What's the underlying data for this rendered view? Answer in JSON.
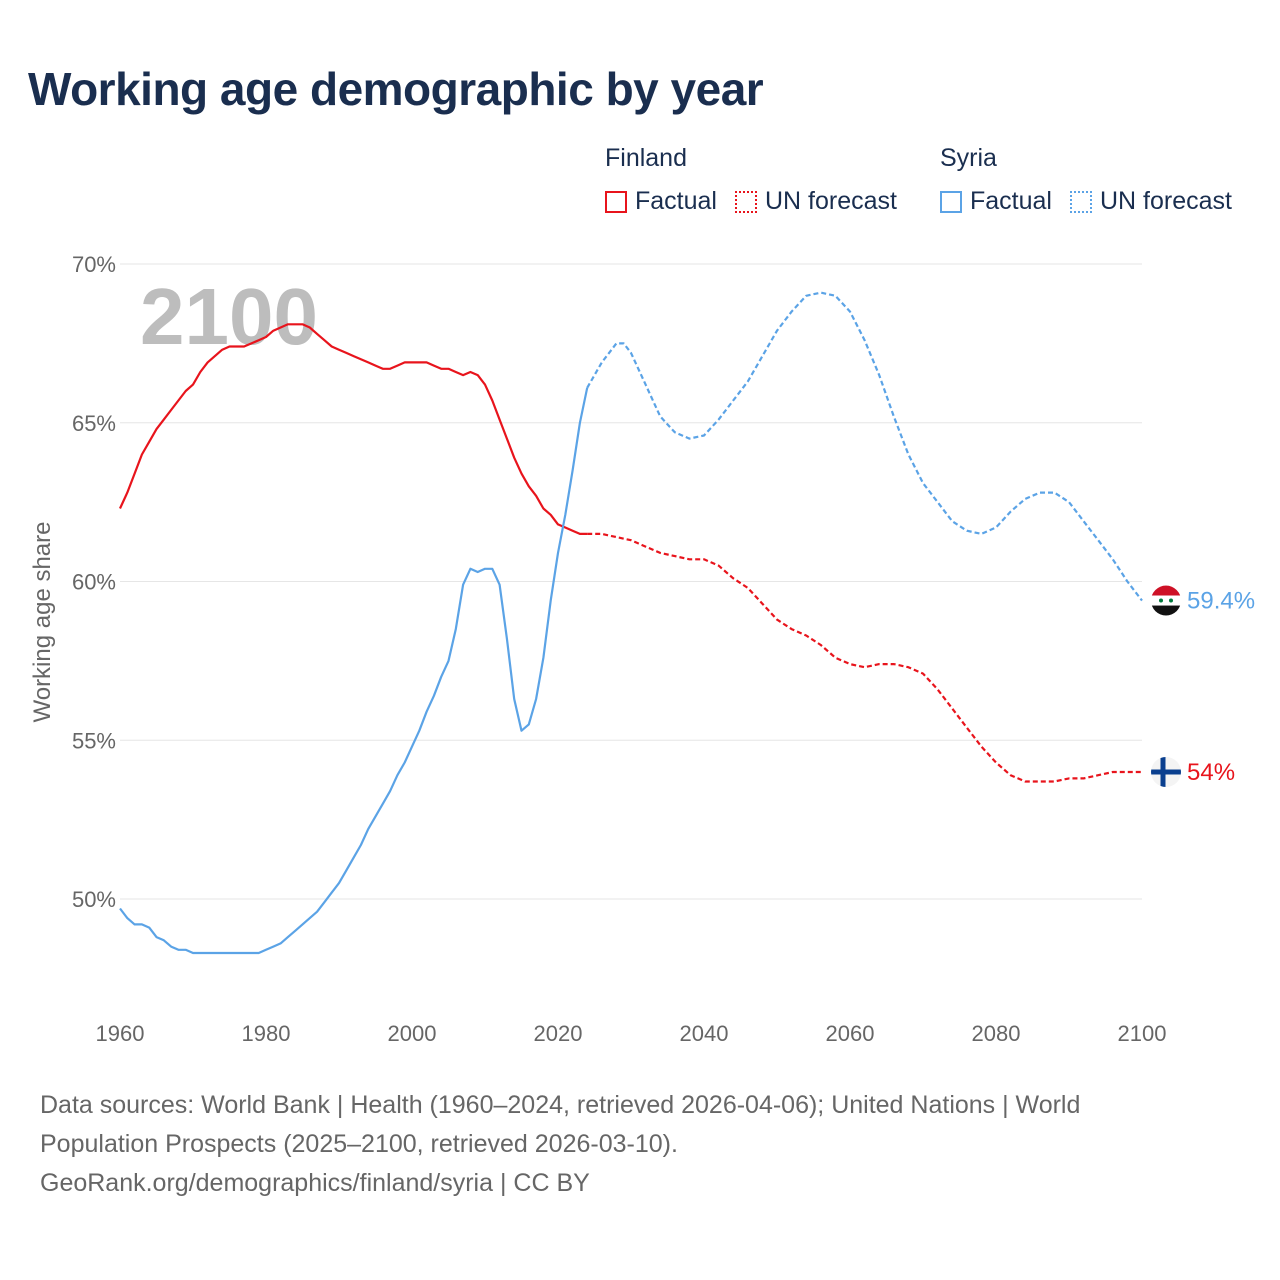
{
  "title": "Working age demographic by year",
  "legend": {
    "finland": {
      "name": "Finland",
      "factual": "Factual",
      "forecast": "UN forecast"
    },
    "syria": {
      "name": "Syria",
      "factual": "Factual",
      "forecast": "UN forecast"
    }
  },
  "colors": {
    "finland": "#e8141c",
    "syria": "#5ba3e6",
    "title": "#1a2e4f",
    "grid": "#e6e6e6",
    "axis_text": "#666666"
  },
  "footer": {
    "line1": "Data sources: World Bank | Health (1960–2024, retrieved 2026-04-06); United Nations | World Population Prospects (2025–2100, retrieved 2026-03-10).",
    "line2": "GeoRank.org/demographics/finland/syria | CC BY"
  },
  "chart_data": {
    "type": "line",
    "title": "Working age demographic by year",
    "xlabel": "",
    "ylabel": "Working age share",
    "current_year": "2100",
    "xlim": [
      1960,
      2100
    ],
    "ylim": [
      47,
      70
    ],
    "y_ticks": [
      50,
      55,
      60,
      65,
      70
    ],
    "y_tick_labels": [
      "50%",
      "55%",
      "60%",
      "65%",
      "70%"
    ],
    "x_ticks": [
      1960,
      1980,
      2000,
      2020,
      2040,
      2060,
      2080,
      2100
    ],
    "x_tick_labels": [
      "1960",
      "1980",
      "2000",
      "2020",
      "2040",
      "2060",
      "2080",
      "2100"
    ],
    "grid": true,
    "series": [
      {
        "name": "Finland",
        "color": "#e8141c",
        "end_label": "54%",
        "factual": [
          [
            1960,
            62.3
          ],
          [
            1961,
            62.8
          ],
          [
            1962,
            63.4
          ],
          [
            1963,
            64.0
          ],
          [
            1964,
            64.4
          ],
          [
            1965,
            64.8
          ],
          [
            1966,
            65.1
          ],
          [
            1967,
            65.4
          ],
          [
            1968,
            65.7
          ],
          [
            1969,
            66.0
          ],
          [
            1970,
            66.2
          ],
          [
            1971,
            66.6
          ],
          [
            1972,
            66.9
          ],
          [
            1973,
            67.1
          ],
          [
            1974,
            67.3
          ],
          [
            1975,
            67.4
          ],
          [
            1976,
            67.4
          ],
          [
            1977,
            67.4
          ],
          [
            1978,
            67.5
          ],
          [
            1979,
            67.6
          ],
          [
            1980,
            67.7
          ],
          [
            1981,
            67.9
          ],
          [
            1982,
            68.0
          ],
          [
            1983,
            68.1
          ],
          [
            1984,
            68.1
          ],
          [
            1985,
            68.1
          ],
          [
            1986,
            68.0
          ],
          [
            1987,
            67.8
          ],
          [
            1988,
            67.6
          ],
          [
            1989,
            67.4
          ],
          [
            1990,
            67.3
          ],
          [
            1991,
            67.2
          ],
          [
            1992,
            67.1
          ],
          [
            1993,
            67.0
          ],
          [
            1994,
            66.9
          ],
          [
            1995,
            66.8
          ],
          [
            1996,
            66.7
          ],
          [
            1997,
            66.7
          ],
          [
            1998,
            66.8
          ],
          [
            1999,
            66.9
          ],
          [
            2000,
            66.9
          ],
          [
            2001,
            66.9
          ],
          [
            2002,
            66.9
          ],
          [
            2003,
            66.8
          ],
          [
            2004,
            66.7
          ],
          [
            2005,
            66.7
          ],
          [
            2006,
            66.6
          ],
          [
            2007,
            66.5
          ],
          [
            2008,
            66.6
          ],
          [
            2009,
            66.5
          ],
          [
            2010,
            66.2
          ],
          [
            2011,
            65.7
          ],
          [
            2012,
            65.1
          ],
          [
            2013,
            64.5
          ],
          [
            2014,
            63.9
          ],
          [
            2015,
            63.4
          ],
          [
            2016,
            63.0
          ],
          [
            2017,
            62.7
          ],
          [
            2018,
            62.3
          ],
          [
            2019,
            62.1
          ],
          [
            2020,
            61.8
          ],
          [
            2021,
            61.7
          ],
          [
            2022,
            61.6
          ],
          [
            2023,
            61.5
          ],
          [
            2024,
            61.5
          ]
        ],
        "forecast": [
          [
            2024,
            61.5
          ],
          [
            2026,
            61.5
          ],
          [
            2028,
            61.4
          ],
          [
            2030,
            61.3
          ],
          [
            2032,
            61.1
          ],
          [
            2034,
            60.9
          ],
          [
            2036,
            60.8
          ],
          [
            2038,
            60.7
          ],
          [
            2040,
            60.7
          ],
          [
            2042,
            60.5
          ],
          [
            2044,
            60.1
          ],
          [
            2046,
            59.8
          ],
          [
            2048,
            59.3
          ],
          [
            2050,
            58.8
          ],
          [
            2052,
            58.5
          ],
          [
            2054,
            58.3
          ],
          [
            2056,
            58.0
          ],
          [
            2058,
            57.6
          ],
          [
            2060,
            57.4
          ],
          [
            2062,
            57.3
          ],
          [
            2064,
            57.4
          ],
          [
            2066,
            57.4
          ],
          [
            2068,
            57.3
          ],
          [
            2070,
            57.1
          ],
          [
            2072,
            56.6
          ],
          [
            2074,
            56.0
          ],
          [
            2076,
            55.4
          ],
          [
            2078,
            54.8
          ],
          [
            2080,
            54.3
          ],
          [
            2082,
            53.9
          ],
          [
            2084,
            53.7
          ],
          [
            2086,
            53.7
          ],
          [
            2088,
            53.7
          ],
          [
            2090,
            53.8
          ],
          [
            2092,
            53.8
          ],
          [
            2094,
            53.9
          ],
          [
            2096,
            54.0
          ],
          [
            2098,
            54.0
          ],
          [
            2100,
            54.0
          ]
        ]
      },
      {
        "name": "Syria",
        "color": "#5ba3e6",
        "end_label": "59.4%",
        "factual": [
          [
            1960,
            49.7
          ],
          [
            1961,
            49.4
          ],
          [
            1962,
            49.2
          ],
          [
            1963,
            49.2
          ],
          [
            1964,
            49.1
          ],
          [
            1965,
            48.8
          ],
          [
            1966,
            48.7
          ],
          [
            1967,
            48.5
          ],
          [
            1968,
            48.4
          ],
          [
            1969,
            48.4
          ],
          [
            1970,
            48.3
          ],
          [
            1971,
            48.3
          ],
          [
            1972,
            48.3
          ],
          [
            1973,
            48.3
          ],
          [
            1974,
            48.3
          ],
          [
            1975,
            48.3
          ],
          [
            1976,
            48.3
          ],
          [
            1977,
            48.3
          ],
          [
            1978,
            48.3
          ],
          [
            1979,
            48.3
          ],
          [
            1980,
            48.4
          ],
          [
            1981,
            48.5
          ],
          [
            1982,
            48.6
          ],
          [
            1983,
            48.8
          ],
          [
            1984,
            49.0
          ],
          [
            1985,
            49.2
          ],
          [
            1986,
            49.4
          ],
          [
            1987,
            49.6
          ],
          [
            1988,
            49.9
          ],
          [
            1989,
            50.2
          ],
          [
            1990,
            50.5
          ],
          [
            1991,
            50.9
          ],
          [
            1992,
            51.3
          ],
          [
            1993,
            51.7
          ],
          [
            1994,
            52.2
          ],
          [
            1995,
            52.6
          ],
          [
            1996,
            53.0
          ],
          [
            1997,
            53.4
          ],
          [
            1998,
            53.9
          ],
          [
            1999,
            54.3
          ],
          [
            2000,
            54.8
          ],
          [
            2001,
            55.3
          ],
          [
            2002,
            55.9
          ],
          [
            2003,
            56.4
          ],
          [
            2004,
            57.0
          ],
          [
            2005,
            57.5
          ],
          [
            2006,
            58.5
          ],
          [
            2007,
            59.9
          ],
          [
            2008,
            60.4
          ],
          [
            2009,
            60.3
          ],
          [
            2010,
            60.4
          ],
          [
            2011,
            60.4
          ],
          [
            2012,
            59.9
          ],
          [
            2013,
            58.2
          ],
          [
            2014,
            56.3
          ],
          [
            2015,
            55.3
          ],
          [
            2016,
            55.5
          ],
          [
            2017,
            56.3
          ],
          [
            2018,
            57.6
          ],
          [
            2019,
            59.4
          ],
          [
            2020,
            60.9
          ],
          [
            2021,
            62.1
          ],
          [
            2022,
            63.5
          ],
          [
            2023,
            65.0
          ],
          [
            2024,
            66.1
          ]
        ],
        "forecast": [
          [
            2024,
            66.1
          ],
          [
            2026,
            66.9
          ],
          [
            2028,
            67.5
          ],
          [
            2029,
            67.5
          ],
          [
            2030,
            67.2
          ],
          [
            2032,
            66.2
          ],
          [
            2034,
            65.2
          ],
          [
            2036,
            64.7
          ],
          [
            2038,
            64.5
          ],
          [
            2040,
            64.6
          ],
          [
            2042,
            65.1
          ],
          [
            2044,
            65.7
          ],
          [
            2046,
            66.3
          ],
          [
            2048,
            67.1
          ],
          [
            2050,
            67.9
          ],
          [
            2052,
            68.5
          ],
          [
            2054,
            69.0
          ],
          [
            2056,
            69.1
          ],
          [
            2058,
            69.0
          ],
          [
            2060,
            68.5
          ],
          [
            2062,
            67.6
          ],
          [
            2064,
            66.5
          ],
          [
            2066,
            65.2
          ],
          [
            2068,
            64.0
          ],
          [
            2070,
            63.1
          ],
          [
            2072,
            62.5
          ],
          [
            2074,
            61.9
          ],
          [
            2076,
            61.6
          ],
          [
            2078,
            61.5
          ],
          [
            2080,
            61.7
          ],
          [
            2082,
            62.2
          ],
          [
            2084,
            62.6
          ],
          [
            2086,
            62.8
          ],
          [
            2088,
            62.8
          ],
          [
            2090,
            62.5
          ],
          [
            2092,
            61.9
          ],
          [
            2094,
            61.3
          ],
          [
            2096,
            60.7
          ],
          [
            2098,
            60.0
          ],
          [
            2100,
            59.4
          ]
        ]
      }
    ]
  }
}
